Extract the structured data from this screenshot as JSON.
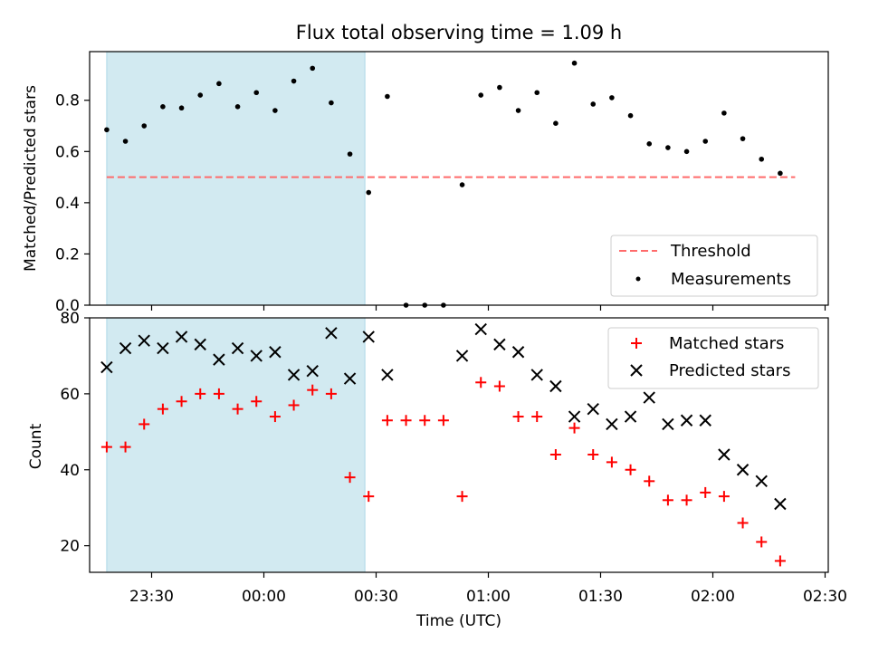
{
  "chart_data": [
    {
      "type": "scatter",
      "title": "Flux total observing time = 1.09 h",
      "xlabel": "",
      "ylabel": "Matched/Predicted stars",
      "ylim": [
        0,
        0.99
      ],
      "y_ticks": [
        "0.0",
        "0.2",
        "0.4",
        "0.6",
        "0.8"
      ],
      "x_ticks": [
        "23:30",
        "00:00",
        "00:30",
        "01:00",
        "01:30",
        "02:00",
        "02:30"
      ],
      "shaded_span": {
        "start": "23:18",
        "end": "00:27",
        "color": "#add8e6"
      },
      "threshold": {
        "name": "Threshold",
        "value": 0.5,
        "color": "#ff6b6b",
        "style": "dashed",
        "x_range": [
          "23:18",
          "02:22"
        ]
      },
      "series": [
        {
          "name": "Measurements",
          "color": "#000000",
          "marker": "dot",
          "points": [
            {
              "x": "23:18",
              "y": 0.685
            },
            {
              "x": "23:23",
              "y": 0.64
            },
            {
              "x": "23:28",
              "y": 0.7
            },
            {
              "x": "23:33",
              "y": 0.775
            },
            {
              "x": "23:38",
              "y": 0.77
            },
            {
              "x": "23:43",
              "y": 0.82
            },
            {
              "x": "23:48",
              "y": 0.865
            },
            {
              "x": "23:53",
              "y": 0.775
            },
            {
              "x": "23:58",
              "y": 0.83
            },
            {
              "x": "00:03",
              "y": 0.76
            },
            {
              "x": "00:08",
              "y": 0.875
            },
            {
              "x": "00:13",
              "y": 0.925
            },
            {
              "x": "00:18",
              "y": 0.79
            },
            {
              "x": "00:23",
              "y": 0.59
            },
            {
              "x": "00:28",
              "y": 0.44
            },
            {
              "x": "00:33",
              "y": 0.815
            },
            {
              "x": "00:38",
              "y": 0.0
            },
            {
              "x": "00:43",
              "y": 0.0
            },
            {
              "x": "00:48",
              "y": 0.0
            },
            {
              "x": "00:53",
              "y": 0.47
            },
            {
              "x": "00:58",
              "y": 0.82
            },
            {
              "x": "01:03",
              "y": 0.85
            },
            {
              "x": "01:08",
              "y": 0.76
            },
            {
              "x": "01:13",
              "y": 0.83
            },
            {
              "x": "01:18",
              "y": 0.71
            },
            {
              "x": "01:23",
              "y": 0.945
            },
            {
              "x": "01:28",
              "y": 0.785
            },
            {
              "x": "01:33",
              "y": 0.81
            },
            {
              "x": "01:38",
              "y": 0.74
            },
            {
              "x": "01:43",
              "y": 0.63
            },
            {
              "x": "01:48",
              "y": 0.615
            },
            {
              "x": "01:53",
              "y": 0.6
            },
            {
              "x": "01:58",
              "y": 0.64
            },
            {
              "x": "02:03",
              "y": 0.75
            },
            {
              "x": "02:08",
              "y": 0.65
            },
            {
              "x": "02:13",
              "y": 0.57
            },
            {
              "x": "02:18",
              "y": 0.515
            }
          ]
        }
      ],
      "legend": {
        "position": "lower right",
        "entries": [
          "Threshold",
          "Measurements"
        ]
      }
    },
    {
      "type": "scatter",
      "title": "",
      "xlabel": "Time (UTC)",
      "ylabel": "Count",
      "ylim": [
        13,
        80
      ],
      "y_ticks": [
        "20",
        "40",
        "60",
        "80"
      ],
      "x_ticks": [
        "23:30",
        "00:00",
        "00:30",
        "01:00",
        "01:30",
        "02:00",
        "02:30"
      ],
      "shaded_span": {
        "start": "23:18",
        "end": "00:27",
        "color": "#add8e6"
      },
      "series": [
        {
          "name": "Matched stars",
          "color": "#ff0000",
          "marker": "plus",
          "points": [
            {
              "x": "23:18",
              "y": 46
            },
            {
              "x": "23:23",
              "y": 46
            },
            {
              "x": "23:28",
              "y": 52
            },
            {
              "x": "23:33",
              "y": 56
            },
            {
              "x": "23:38",
              "y": 58
            },
            {
              "x": "23:43",
              "y": 60
            },
            {
              "x": "23:48",
              "y": 60
            },
            {
              "x": "23:53",
              "y": 56
            },
            {
              "x": "23:58",
              "y": 58
            },
            {
              "x": "00:03",
              "y": 54
            },
            {
              "x": "00:08",
              "y": 57
            },
            {
              "x": "00:13",
              "y": 61
            },
            {
              "x": "00:18",
              "y": 60
            },
            {
              "x": "00:23",
              "y": 38
            },
            {
              "x": "00:28",
              "y": 33
            },
            {
              "x": "00:33",
              "y": 53
            },
            {
              "x": "00:38",
              "y": 53
            },
            {
              "x": "00:43",
              "y": 53
            },
            {
              "x": "00:48",
              "y": 53
            },
            {
              "x": "00:53",
              "y": 33
            },
            {
              "x": "00:58",
              "y": 63
            },
            {
              "x": "01:03",
              "y": 62
            },
            {
              "x": "01:08",
              "y": 54
            },
            {
              "x": "01:13",
              "y": 54
            },
            {
              "x": "01:18",
              "y": 44
            },
            {
              "x": "01:23",
              "y": 51
            },
            {
              "x": "01:28",
              "y": 44
            },
            {
              "x": "01:33",
              "y": 42
            },
            {
              "x": "01:38",
              "y": 40
            },
            {
              "x": "01:43",
              "y": 37
            },
            {
              "x": "01:48",
              "y": 32
            },
            {
              "x": "01:53",
              "y": 32
            },
            {
              "x": "01:58",
              "y": 34
            },
            {
              "x": "02:03",
              "y": 33
            },
            {
              "x": "02:08",
              "y": 26
            },
            {
              "x": "02:13",
              "y": 21
            },
            {
              "x": "02:18",
              "y": 16
            }
          ]
        },
        {
          "name": "Predicted stars",
          "color": "#000000",
          "marker": "x",
          "points": [
            {
              "x": "23:18",
              "y": 67
            },
            {
              "x": "23:23",
              "y": 72
            },
            {
              "x": "23:28",
              "y": 74
            },
            {
              "x": "23:33",
              "y": 72
            },
            {
              "x": "23:38",
              "y": 75
            },
            {
              "x": "23:43",
              "y": 73
            },
            {
              "x": "23:48",
              "y": 69
            },
            {
              "x": "23:53",
              "y": 72
            },
            {
              "x": "23:58",
              "y": 70
            },
            {
              "x": "00:03",
              "y": 71
            },
            {
              "x": "00:08",
              "y": 65
            },
            {
              "x": "00:13",
              "y": 66
            },
            {
              "x": "00:18",
              "y": 76
            },
            {
              "x": "00:23",
              "y": 64
            },
            {
              "x": "00:28",
              "y": 75
            },
            {
              "x": "00:33",
              "y": 65
            },
            {
              "x": "00:53",
              "y": 70
            },
            {
              "x": "00:58",
              "y": 77
            },
            {
              "x": "01:03",
              "y": 73
            },
            {
              "x": "01:08",
              "y": 71
            },
            {
              "x": "01:13",
              "y": 65
            },
            {
              "x": "01:18",
              "y": 62
            },
            {
              "x": "01:23",
              "y": 54
            },
            {
              "x": "01:28",
              "y": 56
            },
            {
              "x": "01:33",
              "y": 52
            },
            {
              "x": "01:38",
              "y": 54
            },
            {
              "x": "01:43",
              "y": 59
            },
            {
              "x": "01:48",
              "y": 52
            },
            {
              "x": "01:53",
              "y": 53
            },
            {
              "x": "01:58",
              "y": 53
            },
            {
              "x": "02:03",
              "y": 44
            },
            {
              "x": "02:08",
              "y": 40
            },
            {
              "x": "02:13",
              "y": 37
            },
            {
              "x": "02:18",
              "y": 31
            }
          ]
        }
      ],
      "legend": {
        "position": "upper right",
        "entries": [
          "Matched stars",
          "Predicted stars"
        ]
      }
    }
  ]
}
